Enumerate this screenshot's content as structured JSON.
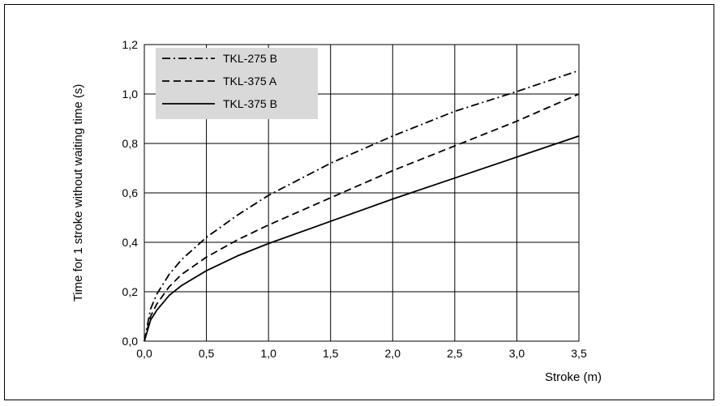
{
  "chart_data": {
    "type": "line",
    "title": "",
    "xlabel": "Stroke (m)",
    "ylabel": "Time for 1 stroke without waiting time (s)",
    "xlim": [
      0,
      3.5
    ],
    "ylim": [
      0,
      1.2
    ],
    "x_ticks": [
      0,
      0.5,
      1.0,
      1.5,
      2.0,
      2.5,
      3.0,
      3.5
    ],
    "x_tick_labels": [
      "0,0",
      "0,5",
      "1,0",
      "1,5",
      "2,0",
      "2,5",
      "3,0",
      "3,5"
    ],
    "y_ticks": [
      0,
      0.2,
      0.4,
      0.6,
      0.8,
      1.0,
      1.2
    ],
    "y_tick_labels": [
      "0,0",
      "0,2",
      "0,4",
      "0,6",
      "0,8",
      "1,0",
      "1,2"
    ],
    "grid": true,
    "legend_position": "top-left",
    "x": [
      0,
      0.05,
      0.1,
      0.2,
      0.3,
      0.5,
      0.75,
      1.0,
      1.5,
      2.0,
      2.5,
      3.0,
      3.5
    ],
    "series": [
      {
        "name": "TKL-275 B",
        "style": "dash-dot",
        "values": [
          0.0,
          0.13,
          0.19,
          0.27,
          0.33,
          0.42,
          0.51,
          0.59,
          0.72,
          0.83,
          0.93,
          1.01,
          1.095
        ]
      },
      {
        "name": "TKL-375 A",
        "style": "dashed",
        "values": [
          0.0,
          0.1,
          0.15,
          0.22,
          0.27,
          0.34,
          0.41,
          0.47,
          0.58,
          0.69,
          0.79,
          0.89,
          1.0
        ]
      },
      {
        "name": "TKL-375 B",
        "style": "solid",
        "values": [
          0.0,
          0.085,
          0.125,
          0.185,
          0.225,
          0.285,
          0.345,
          0.395,
          0.485,
          0.575,
          0.66,
          0.745,
          0.83
        ]
      }
    ]
  }
}
